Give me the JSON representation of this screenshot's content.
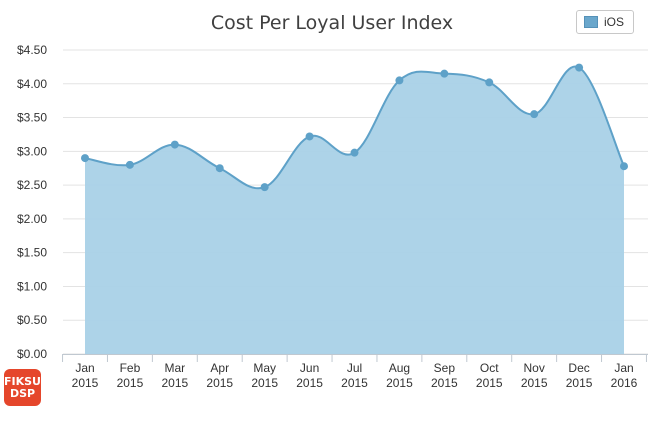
{
  "chart_data": {
    "type": "area",
    "title": "Cost Per Loyal User Index",
    "categories": [
      [
        "Jan",
        "2015"
      ],
      [
        "Feb",
        "2015"
      ],
      [
        "Mar",
        "2015"
      ],
      [
        "Apr",
        "2015"
      ],
      [
        "May",
        "2015"
      ],
      [
        "Jun",
        "2015"
      ],
      [
        "Jul",
        "2015"
      ],
      [
        "Aug",
        "2015"
      ],
      [
        "Sep",
        "2015"
      ],
      [
        "Oct",
        "2015"
      ],
      [
        "Nov",
        "2015"
      ],
      [
        "Dec",
        "2015"
      ],
      [
        "Jan",
        "2016"
      ]
    ],
    "series": [
      {
        "name": "iOS",
        "values": [
          2.9,
          2.8,
          3.1,
          2.75,
          2.47,
          3.22,
          2.98,
          4.05,
          4.15,
          4.02,
          3.55,
          4.24,
          2.78
        ]
      }
    ],
    "yticks": [
      "$0.00",
      "$0.50",
      "$1.00",
      "$1.50",
      "$2.00",
      "$2.50",
      "$3.00",
      "$3.50",
      "$4.00",
      "$4.50"
    ],
    "ylim": [
      0,
      4.5
    ],
    "xlabel": "",
    "ylabel": "",
    "legend_position": "top-right",
    "grid": true,
    "colors": {
      "fill": "#a9d1e7",
      "line": "#5ea1c8",
      "marker": "#5ea1c8"
    }
  },
  "logo": {
    "line1": "FIKSU",
    "line2": "DSP"
  }
}
